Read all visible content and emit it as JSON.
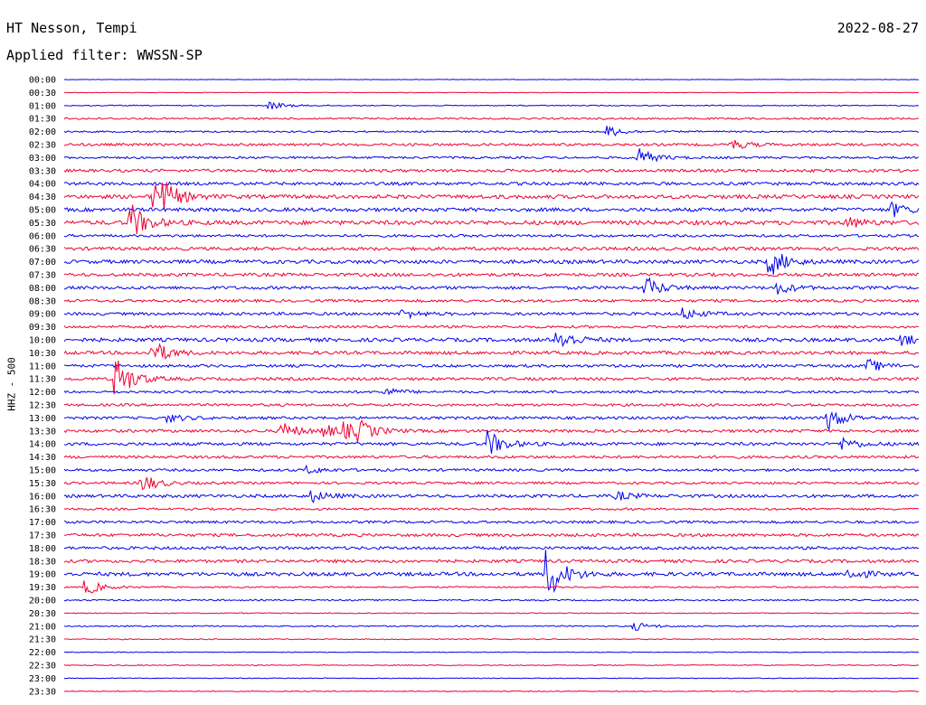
{
  "header": {
    "station": "HT Nesson, Tempi",
    "date": "2022-08-27",
    "filter": "Applied filter: WWSSN-SP"
  },
  "colors": {
    "even_row": "#0000ee",
    "odd_row": "#ee0033"
  },
  "chart_data": {
    "type": "line",
    "title": "HT Nesson, Tempi",
    "ylabel": "HHZ - 500",
    "grid": false,
    "row_labels": [
      "00:00",
      "00:30",
      "01:00",
      "01:30",
      "02:00",
      "02:30",
      "03:00",
      "03:30",
      "04:00",
      "04:30",
      "05:00",
      "05:30",
      "06:00",
      "06:30",
      "07:00",
      "07:30",
      "08:00",
      "08:30",
      "09:00",
      "09:30",
      "10:00",
      "10:30",
      "11:00",
      "11:30",
      "12:00",
      "12:30",
      "13:00",
      "13:30",
      "14:00",
      "14:30",
      "15:00",
      "15:30",
      "16:00",
      "16:30",
      "17:00",
      "17:30",
      "18:00",
      "18:30",
      "19:00",
      "19:30",
      "20:00",
      "20:30",
      "21:00",
      "21:30",
      "22:00",
      "22:30",
      "23:00",
      "23:30"
    ],
    "noise_level": [
      0.2,
      0.3,
      0.5,
      1,
      0.9,
      1.4,
      1.2,
      1.6,
      1.7,
      2.1,
      2,
      2.3,
      1.4,
      1.8,
      2,
      1.8,
      1.7,
      1.5,
      1.6,
      1.4,
      2,
      1.8,
      1.5,
      1.6,
      1.3,
      1.4,
      1.5,
      1.6,
      1.7,
      1.5,
      1.4,
      1.3,
      1.7,
      1.2,
      1.4,
      1.6,
      1.6,
      1.7,
      2,
      0.8,
      0.8,
      0.5,
      0.7,
      0.5,
      0.4,
      0.5,
      0.4,
      0.5
    ],
    "events": [
      {
        "row": 2,
        "minute": 7.3,
        "amp": 4
      },
      {
        "row": 4,
        "minute": 19.1,
        "amp": 6
      },
      {
        "row": 5,
        "minute": 23.5,
        "amp": 5
      },
      {
        "row": 6,
        "minute": 20.2,
        "amp": 9
      },
      {
        "row": 9,
        "minute": 3.2,
        "amp": 14
      },
      {
        "row": 9,
        "minute": 3.6,
        "amp": 8
      },
      {
        "row": 10,
        "minute": 29.1,
        "amp": 7
      },
      {
        "row": 11,
        "minute": 2.4,
        "amp": 18
      },
      {
        "row": 11,
        "minute": 27.5,
        "amp": 6
      },
      {
        "row": 14,
        "minute": 24.8,
        "amp": 15
      },
      {
        "row": 16,
        "minute": 20.5,
        "amp": 10
      },
      {
        "row": 16,
        "minute": 25.1,
        "amp": 6
      },
      {
        "row": 18,
        "minute": 11.9,
        "amp": 5
      },
      {
        "row": 18,
        "minute": 21.8,
        "amp": 6
      },
      {
        "row": 20,
        "minute": 17.4,
        "amp": 11
      },
      {
        "row": 20,
        "minute": 29.5,
        "amp": 5
      },
      {
        "row": 21,
        "minute": 3.2,
        "amp": 11
      },
      {
        "row": 22,
        "minute": 28.3,
        "amp": 6
      },
      {
        "row": 23,
        "minute": 1.9,
        "amp": 22
      },
      {
        "row": 24,
        "minute": 11.3,
        "amp": 4
      },
      {
        "row": 26,
        "minute": 26.9,
        "amp": 12
      },
      {
        "row": 26,
        "minute": 3.7,
        "amp": 4
      },
      {
        "row": 27,
        "minute": 7.7,
        "amp": 9
      },
      {
        "row": 27,
        "minute": 9.9,
        "amp": 7
      },
      {
        "row": 27,
        "minute": 10.4,
        "amp": 8
      },
      {
        "row": 27,
        "minute": 9.2,
        "amp": 6
      },
      {
        "row": 28,
        "minute": 14.9,
        "amp": 14
      },
      {
        "row": 28,
        "minute": 27.4,
        "amp": 6
      },
      {
        "row": 30,
        "minute": 8.5,
        "amp": 4
      },
      {
        "row": 31,
        "minute": 2.8,
        "amp": 9
      },
      {
        "row": 32,
        "minute": 8.7,
        "amp": 6
      },
      {
        "row": 32,
        "minute": 19.5,
        "amp": 4
      },
      {
        "row": 38,
        "minute": 17.0,
        "amp": 28
      },
      {
        "row": 38,
        "minute": 27.6,
        "amp": 6
      },
      {
        "row": 39,
        "minute": 0.8,
        "amp": 8
      },
      {
        "row": 42,
        "minute": 20.1,
        "amp": 4
      }
    ]
  }
}
